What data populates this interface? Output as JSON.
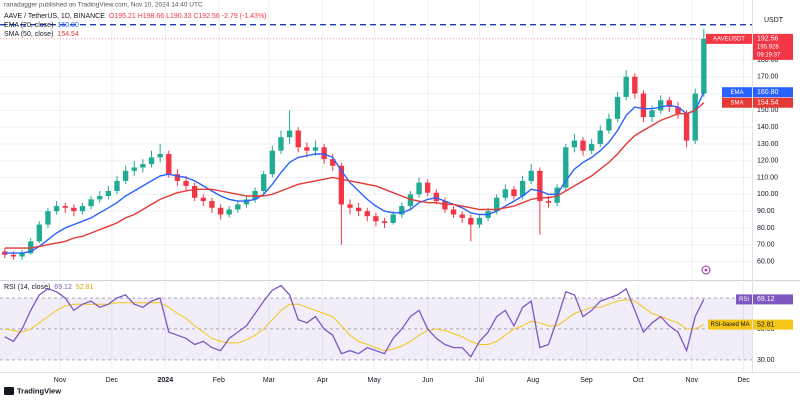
{
  "header": {
    "publisher": "ranadagger published on TradingView.com, Nov 10, 2024 14:40 UTC",
    "symbol": "AAVE / TetherUS, 1D, BINANCE",
    "ohlc": "O195.21 H198.66 L190.33 C192.56 -2.79 (-1.43%)"
  },
  "chart_data": [
    {
      "type": "candlestick",
      "currency": "USDT",
      "ticker": "AAVEUSDT",
      "extra_label": "195.928",
      "countdown": "09:19:37",
      "xlim": [
        -0.556,
        86.58
      ],
      "xticks": [
        {
          "value": 6.4,
          "label": "Nov"
        },
        {
          "value": 12.4,
          "label": "Dec"
        },
        {
          "value": 18.6,
          "label": "2024"
        },
        {
          "value": 24.8,
          "label": "Feb"
        },
        {
          "value": 30.6,
          "label": "Mar"
        },
        {
          "value": 36.8,
          "label": "Apr"
        },
        {
          "value": 42.8,
          "label": "May"
        },
        {
          "value": 49,
          "label": "Jun"
        },
        {
          "value": 55,
          "label": "Jul"
        },
        {
          "value": 61.2,
          "label": "Aug"
        },
        {
          "value": 67.4,
          "label": "Sep"
        },
        {
          "value": 73.4,
          "label": "Oct"
        },
        {
          "value": 79.6,
          "label": "Nov"
        },
        {
          "value": 85.6,
          "label": "Dec"
        }
      ],
      "ylim": [
        50.2,
        202.6
      ],
      "yticks": [
        {
          "value": 60,
          "label": "60.00"
        },
        {
          "value": 70,
          "label": "70.00"
        },
        {
          "value": 80,
          "label": "80.00"
        },
        {
          "value": 90,
          "label": "90.00"
        },
        {
          "value": 100,
          "label": "100.00"
        },
        {
          "value": 110,
          "label": "110.00"
        },
        {
          "value": 120,
          "label": "120.00"
        },
        {
          "value": 130,
          "label": "130.00"
        },
        {
          "value": 140,
          "label": "140.00"
        },
        {
          "value": 150,
          "label": "150.00"
        },
        {
          "value": 160,
          "label": "160.00"
        },
        {
          "value": 170,
          "label": "170.00"
        },
        {
          "value": 180,
          "label": "180.00"
        }
      ],
      "grid": true,
      "up_color": "#22ab94",
      "down_color": "#f23645",
      "hline": {
        "value": 201,
        "color": "#1e3fb0"
      },
      "open": [
        66,
        64,
        63,
        65,
        72,
        82,
        90,
        93,
        92,
        90,
        93,
        97,
        99,
        102,
        108,
        114,
        116,
        118,
        122,
        124,
        112,
        108,
        105,
        98,
        96,
        92,
        88,
        91,
        94,
        97,
        102,
        112,
        126,
        134,
        138,
        128,
        126,
        128,
        121,
        117,
        94,
        92,
        90,
        87,
        84,
        83,
        88,
        93,
        100,
        107,
        101,
        96,
        91,
        88,
        86,
        82,
        86,
        90,
        98,
        103,
        99,
        108,
        114,
        96,
        95,
        104,
        128,
        132,
        126,
        130,
        138,
        145,
        158,
        170,
        160,
        146,
        150,
        156,
        152,
        148,
        132,
        160
      ],
      "high": [
        68,
        66,
        67,
        74,
        84,
        92,
        96,
        95,
        94,
        95,
        99,
        102,
        105,
        111,
        117,
        120,
        121,
        126,
        130,
        126,
        115,
        111,
        107,
        100,
        98,
        94,
        93,
        96,
        99,
        104,
        114,
        129,
        138,
        150,
        140,
        131,
        132,
        130,
        124,
        119,
        97,
        95,
        92,
        89,
        86,
        90,
        95,
        102,
        110,
        109,
        103,
        98,
        93,
        90,
        88,
        88,
        92,
        100,
        106,
        105,
        111,
        118,
        116,
        99,
        106,
        130,
        136,
        134,
        133,
        141,
        148,
        161,
        174,
        172,
        162,
        153,
        159,
        158,
        155,
        150,
        163,
        198.66
      ],
      "low": [
        62,
        61,
        61,
        64,
        71,
        80,
        88,
        89,
        87,
        88,
        91,
        95,
        97,
        100,
        106,
        111,
        113,
        116,
        119,
        110,
        105,
        102,
        96,
        93,
        89,
        85,
        86,
        89,
        92,
        95,
        100,
        110,
        124,
        130,
        125,
        122,
        123,
        118,
        114,
        70,
        88,
        87,
        84,
        81,
        80,
        82,
        86,
        91,
        98,
        99,
        94,
        89,
        86,
        83,
        72,
        80,
        84,
        88,
        96,
        97,
        97,
        106,
        76,
        92,
        93,
        102,
        125,
        123,
        124,
        128,
        136,
        143,
        156,
        157,
        143,
        143,
        148,
        149,
        145,
        128,
        130,
        158
      ],
      "close": [
        64,
        63,
        65,
        72,
        82,
        90,
        93,
        92,
        90,
        93,
        97,
        99,
        102,
        108,
        114,
        116,
        118,
        122,
        124,
        112,
        108,
        105,
        98,
        96,
        92,
        88,
        91,
        94,
        97,
        102,
        112,
        126,
        134,
        138,
        128,
        126,
        128,
        121,
        117,
        94,
        92,
        90,
        87,
        84,
        83,
        88,
        93,
        100,
        107,
        101,
        96,
        91,
        88,
        86,
        82,
        86,
        90,
        98,
        103,
        99,
        108,
        114,
        96,
        95,
        104,
        128,
        132,
        126,
        130,
        138,
        145,
        158,
        170,
        160,
        146,
        150,
        156,
        152,
        148,
        132,
        160,
        192.56
      ],
      "series": [
        {
          "name": "EMA (20, close)",
          "tag": "EMA",
          "color": "#2962ff",
          "value_label": "160.80",
          "values": [
            65,
            65,
            65,
            66,
            69,
            73,
            77,
            80,
            82,
            84,
            86,
            89,
            92,
            95,
            99,
            102,
            105,
            108,
            111,
            112,
            111,
            110,
            108,
            105,
            102,
            99,
            97,
            96,
            96,
            97,
            100,
            106,
            113,
            119,
            122,
            123,
            124,
            124,
            122,
            114,
            107,
            102,
            97,
            93,
            90,
            89,
            89,
            91,
            95,
            97,
            98,
            96,
            94,
            92,
            89,
            88,
            88,
            90,
            93,
            96,
            99,
            103,
            102,
            100,
            100,
            108,
            115,
            119,
            122,
            126,
            131,
            138,
            147,
            152,
            151,
            151,
            152,
            153,
            152,
            148,
            150,
            160.8
          ]
        },
        {
          "name": "SMA (50, close)",
          "tag": "SMA",
          "color": "#e53935",
          "values": [
            68,
            68,
            68,
            68,
            69,
            70,
            71,
            72,
            74,
            75,
            77,
            79,
            81,
            83,
            86,
            88,
            91,
            94,
            97,
            99,
            101,
            102,
            103,
            103,
            103,
            102,
            101,
            100,
            99,
            99,
            99,
            100,
            102,
            104,
            106,
            107,
            108,
            109,
            110,
            109,
            108,
            107,
            106,
            105,
            103,
            101,
            99,
            97,
            96,
            95,
            95,
            94,
            94,
            93,
            92,
            91,
            91,
            91,
            92,
            93,
            95,
            97,
            98,
            98,
            99,
            102,
            105,
            108,
            111,
            115,
            119,
            124,
            130,
            135,
            138,
            141,
            144,
            146,
            148,
            148,
            150,
            154.54
          ]
        }
      ]
    },
    {
      "type": "line",
      "name": "RSI (14, close)",
      "ylim": [
        23.5,
        79.7
      ],
      "yticks": [
        {
          "value": 30,
          "label": "30.00"
        },
        {
          "value": 50,
          "label": "50.00"
        },
        {
          "value": 70,
          "label": "70.00"
        }
      ],
      "band": [
        30,
        70
      ],
      "band_color": "#7e57c2",
      "series": [
        {
          "name": "RSI",
          "color": "#7e57c2",
          "values": [
            45,
            42,
            50,
            62,
            72,
            76,
            74,
            70,
            62,
            66,
            68,
            64,
            66,
            70,
            72,
            66,
            64,
            68,
            70,
            48,
            46,
            44,
            40,
            42,
            38,
            36,
            44,
            48,
            52,
            60,
            68,
            75,
            78,
            72,
            56,
            54,
            58,
            50,
            46,
            34,
            36,
            34,
            38,
            36,
            34,
            44,
            50,
            58,
            62,
            50,
            44,
            40,
            38,
            38,
            32,
            42,
            48,
            58,
            62,
            52,
            64,
            68,
            38,
            40,
            56,
            74,
            72,
            58,
            62,
            68,
            70,
            72,
            76,
            62,
            48,
            54,
            58,
            52,
            48,
            36,
            58,
            69.12
          ]
        },
        {
          "name": "RSI-based MA",
          "color": "#f5c518",
          "values": [
            50,
            49,
            48,
            50,
            54,
            58,
            62,
            65,
            66,
            66,
            66,
            66,
            66,
            67,
            67,
            67,
            67,
            67,
            67,
            64,
            60,
            57,
            52,
            48,
            44,
            42,
            41,
            41,
            43,
            46,
            50,
            56,
            62,
            66,
            66,
            64,
            62,
            60,
            58,
            52,
            46,
            42,
            40,
            38,
            36,
            37,
            39,
            42,
            46,
            49,
            50,
            49,
            47,
            45,
            42,
            40,
            40,
            42,
            46,
            50,
            52,
            55,
            54,
            52,
            52,
            56,
            60,
            62,
            64,
            64,
            66,
            68,
            69,
            68,
            64,
            60,
            58,
            56,
            54,
            50,
            50,
            52.81
          ]
        }
      ]
    }
  ],
  "footer": {
    "brand": "TradingView"
  }
}
